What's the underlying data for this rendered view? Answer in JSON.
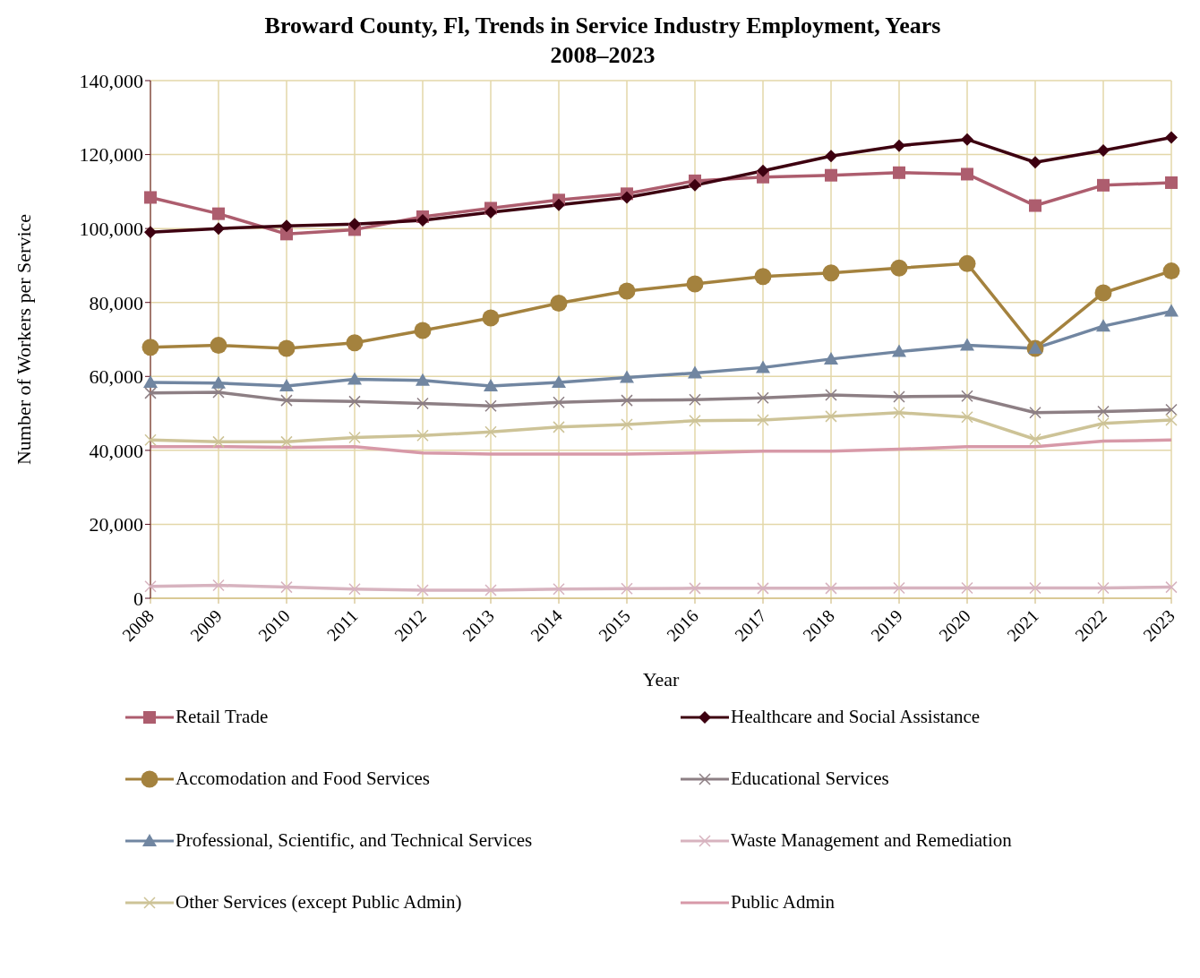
{
  "chart_data": {
    "type": "line",
    "title": "Broward County, Fl,  Trends in Service Industry Employment, Years 2008–2023",
    "xlabel": "Year",
    "ylabel": "Number of Workers per Service",
    "categories": [
      "2008",
      "2009",
      "2010",
      "2011",
      "2012",
      "2013",
      "2014",
      "2015",
      "2016",
      "2017",
      "2018",
      "2019",
      "2020",
      "2021",
      "2022",
      "2023"
    ],
    "series": [
      {
        "name": "Retail Trade",
        "color": "#ad5d6e",
        "marker": "square",
        "values": [
          108400,
          104000,
          98500,
          99700,
          103200,
          105500,
          107700,
          109400,
          112900,
          113900,
          114400,
          115100,
          114700,
          106200,
          111700,
          112400
        ]
      },
      {
        "name": "Healthcare and Social Assistance",
        "color": "#3d0010",
        "marker": "diamond",
        "values": [
          99000,
          100000,
          100700,
          101200,
          102200,
          104400,
          106400,
          108400,
          111700,
          115600,
          119600,
          122400,
          124100,
          117900,
          121100,
          124600
        ]
      },
      {
        "name": "Accomodation and Food Services",
        "color": "#a4823e",
        "marker": "circle",
        "values": [
          67900,
          68400,
          67600,
          69100,
          72400,
          75800,
          79800,
          83100,
          85000,
          87000,
          88000,
          89300,
          90500,
          67600,
          82600,
          88500
        ]
      },
      {
        "name": "Educational Services",
        "color": "#8d7f84",
        "marker": "cross",
        "values": [
          55500,
          55700,
          53500,
          53200,
          52700,
          52000,
          53000,
          53500,
          53700,
          54200,
          55000,
          54500,
          54700,
          50200,
          50500,
          51000
        ]
      },
      {
        "name": "Professional, Scientific, and Technical Services",
        "color": "#7186a1",
        "marker": "triangle",
        "values": [
          58400,
          58200,
          57400,
          59200,
          58900,
          57400,
          58400,
          59700,
          60900,
          62400,
          64700,
          66700,
          68400,
          67600,
          73600,
          77600
        ]
      },
      {
        "name": "Waste Management and Remediation",
        "color": "#d7b3bf",
        "marker": "cross",
        "values": [
          3200,
          3500,
          3000,
          2500,
          2200,
          2200,
          2500,
          2600,
          2700,
          2700,
          2700,
          2800,
          2800,
          2800,
          2800,
          3000
        ]
      },
      {
        "name": "Other Services (except Public Admin)",
        "color": "#cdc397",
        "marker": "cross",
        "values": [
          42800,
          42300,
          42300,
          43500,
          44000,
          45000,
          46300,
          47000,
          48000,
          48200,
          49200,
          50200,
          49000,
          43000,
          47300,
          48200
        ]
      },
      {
        "name": "Public Admin",
        "color": "#d799a8",
        "marker": "none",
        "values": [
          41000,
          41000,
          40800,
          41000,
          39300,
          39000,
          39000,
          39000,
          39300,
          39800,
          39800,
          40300,
          41000,
          41000,
          42500,
          42800
        ]
      }
    ],
    "ylim": [
      0,
      140000
    ],
    "yticks": [
      0,
      {
        "value": 20000,
        "label": "20,000"
      },
      {
        "value": 40000,
        "label": "40,000"
      },
      {
        "value": 60000,
        "label": "60,000"
      },
      {
        "value": 80000,
        "label": "80,000"
      },
      {
        "value": 100000,
        "label": "100,000"
      },
      {
        "value": 120000,
        "label": "120,000"
      },
      {
        "value": 140000,
        "label": "140,000"
      }
    ],
    "grid": true,
    "legend": "bottom"
  }
}
